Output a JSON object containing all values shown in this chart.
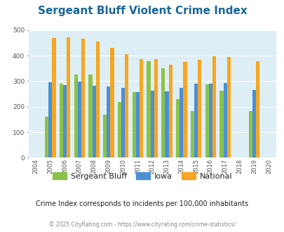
{
  "title": "Sergeant Bluff Violent Crime Index",
  "years": [
    2005,
    2006,
    2007,
    2008,
    2009,
    2010,
    2011,
    2012,
    2013,
    2014,
    2015,
    2016,
    2017,
    2019
  ],
  "sergeant_bluff": [
    160,
    290,
    325,
    325,
    170,
    220,
    258,
    378,
    350,
    230,
    184,
    288,
    262,
    182
  ],
  "iowa": [
    296,
    285,
    298,
    283,
    280,
    275,
    257,
    263,
    260,
    273,
    290,
    291,
    292,
    266
  ],
  "national": [
    470,
    472,
    467,
    455,
    432,
    405,
    387,
    387,
    366,
    377,
    383,
    398,
    394,
    379
  ],
  "color_sb": "#8bc34a",
  "color_iowa": "#4b8fd6",
  "color_national": "#f5a623",
  "bg_color": "#ddeef5",
  "ylim": [
    0,
    500
  ],
  "yticks": [
    0,
    100,
    200,
    300,
    400,
    500
  ],
  "subtitle": "Crime Index corresponds to incidents per 100,000 inhabitants",
  "footer": "© 2025 CityRating.com - https://www.cityrating.com/crime-statistics/",
  "legend_labels": [
    "Sergeant Bluff",
    "Iowa",
    "National"
  ],
  "bar_width": 0.25
}
